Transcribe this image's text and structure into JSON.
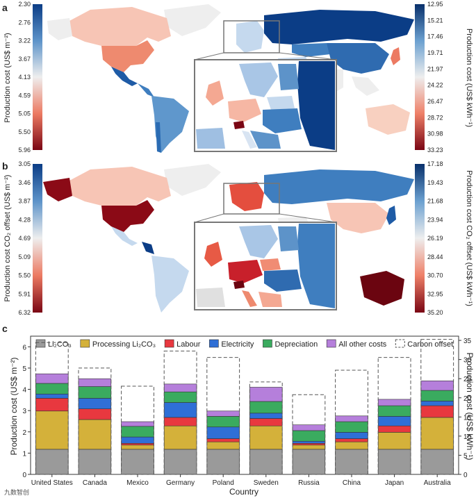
{
  "panels": {
    "a": {
      "label": "a",
      "left_axis_label": "Production cost (US$ m⁻²)",
      "right_axis_label": "Production cost (US$ kWh⁻¹)",
      "left_ticks": [
        "2.30",
        "2.76",
        "3.22",
        "3.67",
        "4.13",
        "4.59",
        "5.05",
        "5.50",
        "5.96"
      ],
      "right_ticks": [
        "12.95",
        "15.21",
        "17.46",
        "19.71",
        "21.97",
        "24.22",
        "26.47",
        "28.72",
        "30.98",
        "33.23"
      ]
    },
    "b": {
      "label": "b",
      "left_axis_label": "Production cost CO₂ offset (US$ m⁻²)",
      "right_axis_label": "Production cost CO₂ offset (US$ kWh⁻¹)",
      "left_ticks": [
        "3.05",
        "3.46",
        "3.87",
        "4.28",
        "4.69",
        "5.09",
        "5.50",
        "5.91",
        "6.32"
      ],
      "right_ticks": [
        "17.18",
        "19.43",
        "21.68",
        "23.94",
        "26.19",
        "28.44",
        "30.70",
        "32.95",
        "35.20"
      ]
    },
    "c": {
      "label": "c"
    }
  },
  "colors": {
    "li2co3": "#9a9a9a",
    "processing": "#d4b13a",
    "labour": "#e8383f",
    "electricity": "#2f6fd6",
    "depreciation": "#3aab5f",
    "other": "#b57fdb",
    "map_high": "#8b0a16",
    "map_mid": "#f2f2f2",
    "map_low": "#0b3d86"
  },
  "chart_data": {
    "type": "bar",
    "stacked": true,
    "title": "",
    "xlabel": "Country",
    "ylabel": "Production cost (US$ m⁻²)",
    "ylabel_right": "Production cost (US$ kWh⁻¹)",
    "ylim": [
      0,
      6.5
    ],
    "ylim_right": [
      0,
      36.1
    ],
    "yticks": [
      0,
      1,
      2,
      3,
      4,
      5,
      6
    ],
    "yticks_right": [
      0,
      5,
      10,
      15,
      20,
      25,
      30,
      35
    ],
    "categories": [
      "United States",
      "Canada",
      "Mexico",
      "Germany",
      "Poland",
      "Sweden",
      "Russia",
      "China",
      "Japan",
      "Australia"
    ],
    "legend": [
      "Li₂CO₃",
      "Processing Li₂CO₃",
      "Labour",
      "Electricity",
      "Depreciation",
      "All other costs",
      "Carbon offset"
    ],
    "series": [
      {
        "name": "Li₂CO₃",
        "color_key": "li2co3",
        "values": [
          1.18,
          1.18,
          1.18,
          1.18,
          1.18,
          1.18,
          1.18,
          1.18,
          1.18,
          1.18
        ]
      },
      {
        "name": "Processing Li₂CO₃",
        "color_key": "processing",
        "values": [
          1.8,
          1.4,
          0.2,
          1.1,
          0.35,
          1.1,
          0.2,
          0.35,
          0.8,
          1.5
        ]
      },
      {
        "name": "Labour",
        "color_key": "labour",
        "values": [
          0.6,
          0.5,
          0.08,
          0.4,
          0.15,
          0.35,
          0.08,
          0.15,
          0.3,
          0.55
        ]
      },
      {
        "name": "Electricity",
        "color_key": "electricity",
        "values": [
          0.2,
          0.5,
          0.3,
          0.7,
          0.55,
          0.25,
          0.1,
          0.3,
          0.45,
          0.22
        ]
      },
      {
        "name": "Depreciation",
        "color_key": "depreciation",
        "values": [
          0.5,
          0.55,
          0.5,
          0.5,
          0.5,
          0.55,
          0.5,
          0.5,
          0.5,
          0.5
        ]
      },
      {
        "name": "All other costs",
        "color_key": "other",
        "values": [
          0.45,
          0.37,
          0.22,
          0.37,
          0.25,
          0.67,
          0.27,
          0.27,
          0.3,
          0.45
        ]
      }
    ],
    "carbon_offset_totals": [
      6.2,
      5.0,
      4.15,
      5.8,
      5.5,
      4.35,
      3.75,
      4.9,
      5.5,
      6.35
    ]
  },
  "watermark": "九数智创"
}
